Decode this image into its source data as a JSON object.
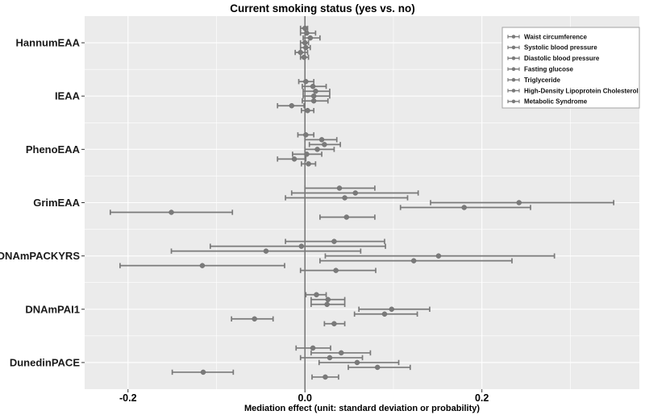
{
  "chart_data": {
    "type": "forest",
    "marker": "point_with_95ci_errorbar",
    "title": "Current smoking status (yes vs. no)",
    "xlabel": "Mediation effect (unit: standard deviation or probability)",
    "categories": [
      "HannumEAA",
      "IEAA",
      "PhenoEAA",
      "GrimEAA",
      "DNAmPACKYRS",
      "DNAmPAI1",
      "DunedinPACE"
    ],
    "mediators": [
      "Waist circumference",
      "Systolic blood pressure",
      "Diastolic blood pressure",
      "Fasting glucose",
      "Triglyceride",
      "High-Density Lipoprotein Cholesterol",
      "Metabolic Syndrome"
    ],
    "series": [
      {
        "name": "HannumEAA",
        "est": [
          0.0,
          0.002,
          0.006,
          0.0,
          0.001,
          -0.005,
          -0.001
        ],
        "lo": [
          -0.005,
          -0.005,
          -0.002,
          -0.005,
          -0.005,
          -0.011,
          -0.005
        ],
        "hi": [
          0.003,
          0.012,
          0.017,
          0.004,
          0.006,
          0.003,
          0.004
        ]
      },
      {
        "name": "IEAA",
        "est": [
          0.001,
          0.009,
          0.012,
          0.01,
          0.01,
          -0.015,
          0.003
        ],
        "lo": [
          -0.007,
          -0.003,
          -0.002,
          -0.002,
          -0.003,
          -0.031,
          -0.004
        ],
        "hi": [
          0.01,
          0.024,
          0.028,
          0.028,
          0.026,
          -0.001,
          0.01
        ]
      },
      {
        "name": "PhenoEAA",
        "est": [
          0.001,
          0.019,
          0.022,
          0.014,
          0.002,
          -0.012,
          0.004
        ],
        "lo": [
          -0.008,
          0.0,
          0.005,
          0.0,
          -0.014,
          -0.031,
          -0.004
        ],
        "hi": [
          0.01,
          0.036,
          0.04,
          0.033,
          0.019,
          0.001,
          0.012
        ]
      },
      {
        "name": "GrimEAA",
        "est": [
          0.039,
          0.057,
          0.045,
          0.242,
          0.18,
          -0.151,
          0.047
        ],
        "lo": [
          0.0,
          -0.015,
          -0.022,
          0.142,
          0.108,
          -0.22,
          0.017
        ],
        "hi": [
          0.079,
          0.128,
          0.116,
          0.349,
          0.255,
          -0.082,
          0.079
        ]
      },
      {
        "name": "DNAmPACKYRS",
        "est": [
          0.033,
          -0.004,
          -0.044,
          0.151,
          0.123,
          -0.116,
          0.035
        ],
        "lo": [
          -0.022,
          -0.107,
          -0.151,
          0.023,
          0.017,
          -0.209,
          -0.005
        ],
        "hi": [
          0.09,
          0.091,
          0.063,
          0.282,
          0.234,
          -0.023,
          0.08
        ]
      },
      {
        "name": "DNAmPAI1",
        "est": [
          0.013,
          0.026,
          0.025,
          0.098,
          0.09,
          -0.057,
          0.033
        ],
        "lo": [
          0.001,
          0.007,
          0.007,
          0.061,
          0.056,
          -0.083,
          0.022
        ],
        "hi": [
          0.024,
          0.045,
          0.045,
          0.141,
          0.127,
          -0.036,
          0.045
        ]
      },
      {
        "name": "DunedinPACE",
        "est": [
          0.009,
          0.041,
          0.028,
          0.059,
          0.082,
          -0.115,
          0.023
        ],
        "lo": [
          -0.01,
          0.007,
          -0.005,
          0.016,
          0.049,
          -0.15,
          0.008
        ],
        "hi": [
          0.029,
          0.074,
          0.065,
          0.106,
          0.119,
          -0.081,
          0.038
        ]
      }
    ],
    "xlim": [
      -0.249,
      0.378
    ],
    "x_ticks": [
      -0.2,
      0.0,
      0.2
    ],
    "x_tick_labels": [
      "-0.2",
      "0.0",
      "0.2"
    ],
    "x_minor_ticks": [
      -0.1,
      0.1,
      0.3
    ],
    "zero_reference_line": 0.0,
    "grid": "white major/minor gridlines on gray panel",
    "legend": {
      "position": "top-right-inside"
    },
    "colors": {
      "panel_bg": "#EBEBEB",
      "grid": "#FFFFFF",
      "marker": "#7A7A7A",
      "zero_line": "#6B6B6B",
      "text": "#000000",
      "axis_text": "#1A1A1A",
      "legend_bg": "#FFFFFF",
      "legend_border": "#A3A3A3"
    }
  }
}
